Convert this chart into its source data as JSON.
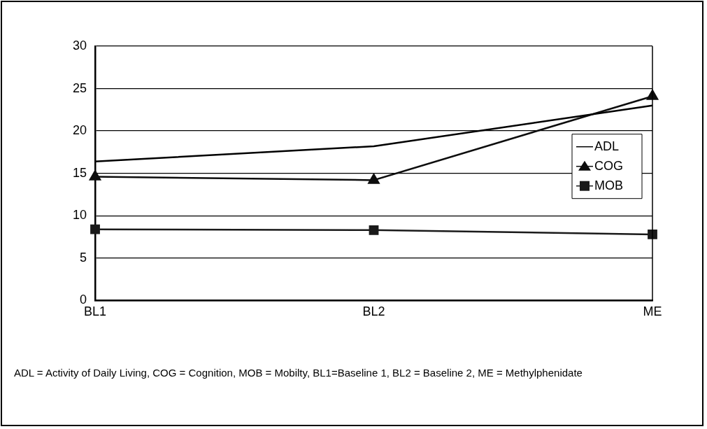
{
  "chart_data": {
    "type": "line",
    "categories": [
      "BL1",
      "BL2",
      "ME"
    ],
    "series": [
      {
        "name": "ADL",
        "color": "#000000",
        "values": [
          16.4,
          18.2,
          23.0
        ],
        "marker": "none"
      },
      {
        "name": "COG",
        "color": "#0d0d0d",
        "values": [
          14.6,
          14.2,
          24.1
        ],
        "marker": "triangle"
      },
      {
        "name": "MOB",
        "color": "#1a1a1a",
        "values": [
          8.4,
          8.3,
          7.8
        ],
        "marker": "square"
      }
    ],
    "ylim": [
      0,
      30
    ],
    "yticks": [
      0,
      5,
      10,
      15,
      20,
      25,
      30
    ],
    "grid": "y",
    "legend": "right",
    "line_style": "solid",
    "annotations": [
      "ADL = Activity of Daily Living, COG = Cognition, MOB = Mobilty, BL1=Baseline 1, BL2 = Baseline 2, ME = Methylphenidate"
    ]
  }
}
